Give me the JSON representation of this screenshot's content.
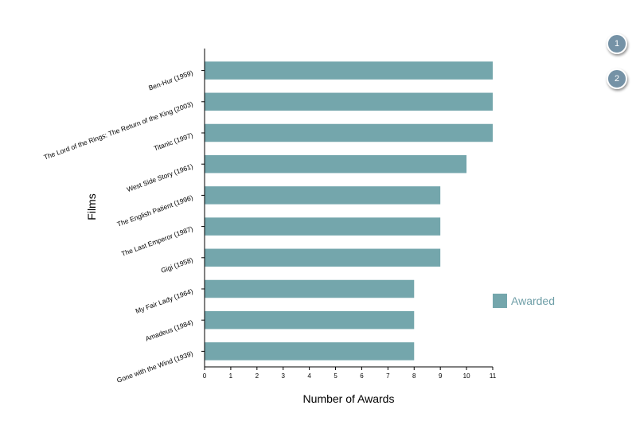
{
  "nav": {
    "buttons": [
      "1",
      "2"
    ]
  },
  "colors": {
    "bar": "#74a6ac",
    "legend_text": "#6e9ea7",
    "nav_button": "#7592a6"
  },
  "chart_data": {
    "type": "bar",
    "orientation": "horizontal",
    "categories": [
      "Ben-Hur (1959)",
      "The Lord of the Rings: The Return of the King (2003)",
      "Titanic (1997)",
      "West Side Story (1961)",
      "The English Patient (1996)",
      "The Last Emperor (1987)",
      "Gigi (1958)",
      "My Fair Lady (1964)",
      "Amadeus (1984)",
      "Gone with the Wind (1939)"
    ],
    "series": [
      {
        "name": "Awarded",
        "values": [
          11,
          11,
          11,
          10,
          9,
          9,
          9,
          8,
          8,
          8
        ]
      }
    ],
    "xlabel": "Number of Awards",
    "ylabel": "Films",
    "xlim": [
      0,
      11
    ],
    "xticks": [
      "0",
      "1",
      "2",
      "3",
      "4",
      "5",
      "6",
      "7",
      "8",
      "9",
      "10",
      "11"
    ],
    "grid": false,
    "legend": "right"
  }
}
